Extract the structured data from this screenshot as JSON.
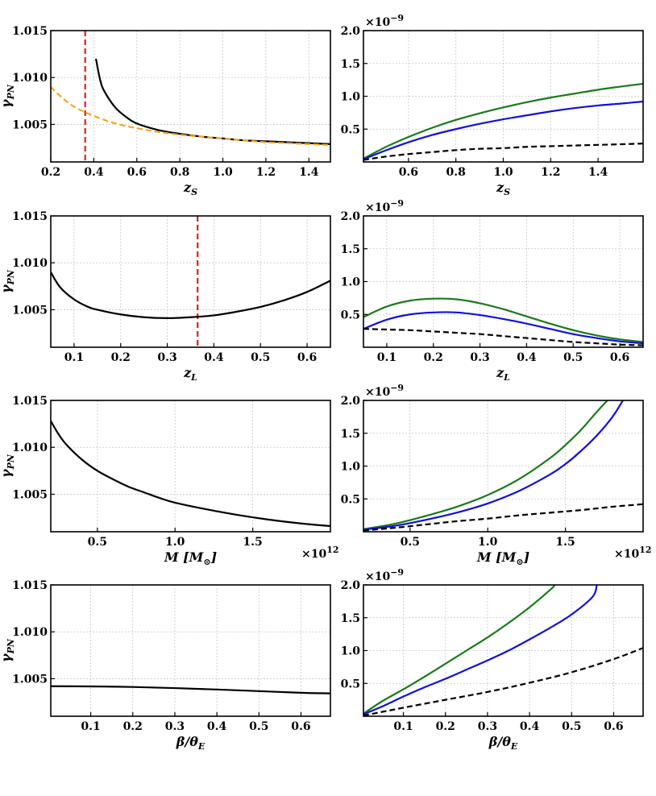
{
  "figure_title": "",
  "colors": {
    "black": "#000000",
    "green": "#1a7a1a",
    "blue": "#1010e0",
    "orange": "#f5a623",
    "red": "#e02020",
    "grid": "#c8c8c8"
  },
  "chart_data": [
    {
      "id": "zs-gamma",
      "type": "line",
      "title": "",
      "xlabel": "z",
      "xlabel_sub": "S",
      "ylabel": "γ",
      "ylabel_sub": "PN",
      "xlim": [
        0.2,
        1.5
      ],
      "ylim": [
        1.001,
        1.015
      ],
      "x_ticks": [
        0.2,
        0.4,
        0.6,
        0.8,
        1.0,
        1.2,
        1.4
      ],
      "x_tick_labels": [
        "0.2",
        "0.4",
        "0.6",
        "0.8",
        "1.0",
        "1.2",
        "1.4"
      ],
      "y_ticks": [
        1.005,
        1.01,
        1.015
      ],
      "y_tick_labels": [
        "1.005",
        "1.010",
        "1.015"
      ],
      "x_multiplier": "",
      "y_multiplier": "",
      "grid": true,
      "vlines": [
        {
          "x": 0.36,
          "color": "red",
          "style": "dashed"
        }
      ],
      "series": [
        {
          "name": "gamma_PN",
          "color": "black",
          "style": "solid",
          "x": [
            0.41,
            0.43,
            0.45,
            0.5,
            0.55,
            0.6,
            0.7,
            0.8,
            0.9,
            1.0,
            1.1,
            1.2,
            1.3,
            1.4,
            1.5
          ],
          "y": [
            1.012,
            1.0097,
            1.0085,
            1.0068,
            1.0058,
            1.0051,
            1.0044,
            1.004,
            1.0037,
            1.0035,
            1.0033,
            1.0032,
            1.0031,
            1.003,
            1.0029
          ]
        },
        {
          "name": "comparison",
          "color": "orange",
          "style": "dashed",
          "x": [
            0.2,
            0.25,
            0.3,
            0.35,
            0.4,
            0.5,
            0.6,
            0.7,
            0.8,
            0.9,
            1.0,
            1.1,
            1.2,
            1.3,
            1.4,
            1.5
          ],
          "y": [
            1.009,
            1.0079,
            1.007,
            1.0064,
            1.0059,
            1.0051,
            1.0046,
            1.0042,
            1.0039,
            1.0037,
            1.0035,
            1.0033,
            1.0031,
            1.003,
            1.0029,
            1.0028
          ]
        }
      ]
    },
    {
      "id": "zs-deviation",
      "type": "line",
      "title": "",
      "xlabel": "z",
      "xlabel_sub": "S",
      "ylabel": "",
      "ylabel_sub": "",
      "xlim": [
        0.41,
        1.59
      ],
      "ylim": [
        0.0,
        2.0
      ],
      "x_ticks": [
        0.6,
        0.8,
        1.0,
        1.2,
        1.4
      ],
      "x_tick_labels": [
        "0.6",
        "0.8",
        "1.0",
        "1.2",
        "1.4"
      ],
      "y_ticks": [
        0.5,
        1.0,
        1.5,
        2.0
      ],
      "y_tick_labels": [
        "0.5",
        "1.0",
        "1.5",
        "2.0"
      ],
      "x_multiplier": "",
      "y_multiplier": "×10",
      "y_multiplier_exp": "−9",
      "grid": true,
      "vlines": [],
      "series": [
        {
          "name": "green",
          "color": "green",
          "style": "solid",
          "x": [
            0.41,
            0.5,
            0.6,
            0.7,
            0.8,
            0.9,
            1.0,
            1.1,
            1.2,
            1.3,
            1.4,
            1.5,
            1.59
          ],
          "y": [
            0.05,
            0.22,
            0.38,
            0.52,
            0.64,
            0.74,
            0.83,
            0.91,
            0.98,
            1.04,
            1.1,
            1.15,
            1.19
          ]
        },
        {
          "name": "blue",
          "color": "blue",
          "style": "solid",
          "x": [
            0.41,
            0.5,
            0.6,
            0.7,
            0.8,
            0.9,
            1.0,
            1.1,
            1.2,
            1.3,
            1.4,
            1.5,
            1.59
          ],
          "y": [
            0.04,
            0.17,
            0.3,
            0.41,
            0.5,
            0.58,
            0.65,
            0.71,
            0.77,
            0.82,
            0.86,
            0.89,
            0.92
          ]
        },
        {
          "name": "black-dashed",
          "color": "black",
          "style": "dashed",
          "x": [
            0.41,
            0.5,
            0.6,
            0.7,
            0.8,
            0.9,
            1.0,
            1.1,
            1.2,
            1.3,
            1.4,
            1.5,
            1.59
          ],
          "y": [
            0.03,
            0.08,
            0.12,
            0.15,
            0.18,
            0.2,
            0.21,
            0.23,
            0.24,
            0.25,
            0.26,
            0.27,
            0.28
          ]
        }
      ]
    },
    {
      "id": "zl-gamma",
      "type": "line",
      "title": "",
      "xlabel": "z",
      "xlabel_sub": "L",
      "ylabel": "γ",
      "ylabel_sub": "PN",
      "xlim": [
        0.05,
        0.65
      ],
      "ylim": [
        1.001,
        1.015
      ],
      "x_ticks": [
        0.1,
        0.2,
        0.3,
        0.4,
        0.5,
        0.6
      ],
      "x_tick_labels": [
        "0.1",
        "0.2",
        "0.3",
        "0.4",
        "0.5",
        "0.6"
      ],
      "y_ticks": [
        1.005,
        1.01,
        1.015
      ],
      "y_tick_labels": [
        "1.005",
        "1.010",
        "1.015"
      ],
      "x_multiplier": "",
      "y_multiplier": "",
      "grid": true,
      "vlines": [
        {
          "x": 0.365,
          "color": "red",
          "style": "dashed"
        }
      ],
      "series": [
        {
          "name": "gamma_PN",
          "color": "black",
          "style": "solid",
          "x": [
            0.05,
            0.07,
            0.1,
            0.13,
            0.15,
            0.2,
            0.25,
            0.3,
            0.35,
            0.4,
            0.45,
            0.5,
            0.55,
            0.6,
            0.65
          ],
          "y": [
            1.009,
            1.0074,
            1.0061,
            1.0053,
            1.005,
            1.0045,
            1.0042,
            1.0041,
            1.0042,
            1.0044,
            1.0048,
            1.0053,
            1.006,
            1.0069,
            1.0081
          ]
        }
      ]
    },
    {
      "id": "zl-deviation",
      "type": "line",
      "title": "",
      "xlabel": "z",
      "xlabel_sub": "L",
      "ylabel": "",
      "ylabel_sub": "",
      "xlim": [
        0.05,
        0.65
      ],
      "ylim": [
        0.0,
        2.0
      ],
      "x_ticks": [
        0.1,
        0.2,
        0.3,
        0.4,
        0.5,
        0.6
      ],
      "x_tick_labels": [
        "0.1",
        "0.2",
        "0.3",
        "0.4",
        "0.5",
        "0.6"
      ],
      "y_ticks": [
        0.5,
        1.0,
        1.5,
        2.0
      ],
      "y_tick_labels": [
        "0.5",
        "1.0",
        "1.5",
        "2.0"
      ],
      "x_multiplier": "",
      "y_multiplier": "×10",
      "y_multiplier_exp": "−9",
      "grid": true,
      "vlines": [],
      "series": [
        {
          "name": "green",
          "color": "green",
          "style": "solid",
          "x": [
            0.05,
            0.1,
            0.15,
            0.2,
            0.25,
            0.3,
            0.35,
            0.4,
            0.45,
            0.5,
            0.55,
            0.6,
            0.65
          ],
          "y": [
            0.46,
            0.62,
            0.71,
            0.74,
            0.73,
            0.67,
            0.58,
            0.47,
            0.36,
            0.26,
            0.18,
            0.12,
            0.08
          ]
        },
        {
          "name": "blue",
          "color": "blue",
          "style": "solid",
          "x": [
            0.05,
            0.1,
            0.15,
            0.2,
            0.25,
            0.3,
            0.35,
            0.4,
            0.45,
            0.5,
            0.55,
            0.6,
            0.65
          ],
          "y": [
            0.28,
            0.42,
            0.5,
            0.53,
            0.53,
            0.49,
            0.43,
            0.36,
            0.28,
            0.2,
            0.14,
            0.09,
            0.06
          ]
        },
        {
          "name": "black-dashed",
          "color": "black",
          "style": "dashed",
          "x": [
            0.05,
            0.1,
            0.15,
            0.2,
            0.25,
            0.3,
            0.35,
            0.4,
            0.45,
            0.5,
            0.55,
            0.6,
            0.65
          ],
          "y": [
            0.28,
            0.27,
            0.26,
            0.24,
            0.22,
            0.2,
            0.17,
            0.14,
            0.11,
            0.08,
            0.06,
            0.04,
            0.03
          ]
        }
      ]
    },
    {
      "id": "mass-gamma",
      "type": "line",
      "title": "",
      "xlabel": "M  [M",
      "xlabel_sub": "⊙",
      "xlabel_close": "]",
      "ylabel": "γ",
      "ylabel_sub": "PN",
      "xlim": [
        0.2,
        2.0
      ],
      "ylim": [
        1.001,
        1.015
      ],
      "x_ticks": [
        0.5,
        1.0,
        1.5
      ],
      "x_tick_labels": [
        "0.5",
        "1.0",
        "1.5"
      ],
      "y_ticks": [
        1.005,
        1.01,
        1.015
      ],
      "y_tick_labels": [
        "1.005",
        "1.010",
        "1.015"
      ],
      "x_multiplier": "×10",
      "x_multiplier_exp": "12",
      "y_multiplier": "",
      "grid": true,
      "vlines": [],
      "series": [
        {
          "name": "gamma_PN",
          "color": "black",
          "style": "solid",
          "x": [
            0.2,
            0.25,
            0.3,
            0.4,
            0.5,
            0.6,
            0.7,
            0.8,
            0.9,
            1.0,
            1.2,
            1.4,
            1.6,
            1.8,
            2.0
          ],
          "y": [
            1.0128,
            1.0114,
            1.0103,
            1.0087,
            1.0075,
            1.0066,
            1.0058,
            1.0052,
            1.0046,
            1.0041,
            1.0034,
            1.0028,
            1.0023,
            1.0019,
            1.0016
          ]
        }
      ]
    },
    {
      "id": "mass-deviation",
      "type": "line",
      "title": "",
      "xlabel": "M  [M",
      "xlabel_sub": "⊙",
      "xlabel_close": "]",
      "ylabel": "",
      "ylabel_sub": "",
      "xlim": [
        0.2,
        2.0
      ],
      "ylim": [
        0.0,
        2.0
      ],
      "x_ticks": [
        0.5,
        1.0,
        1.5
      ],
      "x_tick_labels": [
        "0.5",
        "1.0",
        "1.5"
      ],
      "y_ticks": [
        0.5,
        1.0,
        1.5,
        2.0
      ],
      "y_tick_labels": [
        "0.5",
        "1.0",
        "1.5",
        "2.0"
      ],
      "x_multiplier": "×10",
      "x_multiplier_exp": "12",
      "y_multiplier": "×10",
      "y_multiplier_exp": "−9",
      "grid": true,
      "vlines": [],
      "series": [
        {
          "name": "green",
          "color": "green",
          "style": "solid",
          "x": [
            0.2,
            0.4,
            0.6,
            0.8,
            1.0,
            1.2,
            1.4,
            1.5,
            1.6,
            1.7,
            1.77
          ],
          "y": [
            0.04,
            0.12,
            0.24,
            0.38,
            0.56,
            0.8,
            1.12,
            1.32,
            1.55,
            1.82,
            2.0
          ]
        },
        {
          "name": "blue",
          "color": "blue",
          "style": "solid",
          "x": [
            0.2,
            0.4,
            0.6,
            0.8,
            1.0,
            1.2,
            1.4,
            1.5,
            1.6,
            1.7,
            1.8,
            1.87
          ],
          "y": [
            0.03,
            0.09,
            0.18,
            0.29,
            0.43,
            0.62,
            0.87,
            1.03,
            1.23,
            1.46,
            1.74,
            2.0
          ]
        },
        {
          "name": "black-dashed",
          "color": "black",
          "style": "dashed",
          "x": [
            0.2,
            0.4,
            0.6,
            0.8,
            1.0,
            1.2,
            1.4,
            1.6,
            1.8,
            2.0
          ],
          "y": [
            0.02,
            0.06,
            0.11,
            0.16,
            0.2,
            0.25,
            0.29,
            0.33,
            0.38,
            0.42
          ]
        }
      ]
    },
    {
      "id": "beta-gamma",
      "type": "line",
      "title": "",
      "xlabel": "β/θ",
      "xlabel_sub": "E",
      "ylabel": "γ",
      "ylabel_sub": "PN",
      "xlim": [
        0.005,
        0.67
      ],
      "ylim": [
        1.001,
        1.015
      ],
      "x_ticks": [
        0.1,
        0.2,
        0.3,
        0.4,
        0.5,
        0.6
      ],
      "x_tick_labels": [
        "0.1",
        "0.2",
        "0.3",
        "0.4",
        "0.5",
        "0.6"
      ],
      "y_ticks": [
        1.005,
        1.01,
        1.015
      ],
      "y_tick_labels": [
        "1.005",
        "1.010",
        "1.015"
      ],
      "x_multiplier": "",
      "y_multiplier": "",
      "grid": true,
      "vlines": [],
      "series": [
        {
          "name": "gamma_PN",
          "color": "black",
          "style": "solid",
          "x": [
            0.005,
            0.1,
            0.2,
            0.3,
            0.4,
            0.5,
            0.6,
            0.67
          ],
          "y": [
            1.0042,
            1.00418,
            1.00412,
            1.004,
            1.00385,
            1.00368,
            1.0035,
            1.00344
          ]
        }
      ]
    },
    {
      "id": "beta-deviation",
      "type": "line",
      "title": "",
      "xlabel": "β/θ",
      "xlabel_sub": "E",
      "ylabel": "",
      "ylabel_sub": "",
      "xlim": [
        0.005,
        0.67
      ],
      "ylim": [
        0.0,
        2.0
      ],
      "x_ticks": [
        0.1,
        0.2,
        0.3,
        0.4,
        0.5,
        0.6
      ],
      "x_tick_labels": [
        "0.1",
        "0.2",
        "0.3",
        "0.4",
        "0.5",
        "0.6"
      ],
      "y_ticks": [
        0.5,
        1.0,
        1.5,
        2.0
      ],
      "y_tick_labels": [
        "0.5",
        "1.0",
        "1.5",
        "2.0"
      ],
      "x_multiplier": "",
      "y_multiplier": "×10",
      "y_multiplier_exp": "−9",
      "grid": true,
      "vlines": [],
      "series": [
        {
          "name": "green",
          "color": "green",
          "style": "solid",
          "x": [
            0.005,
            0.05,
            0.1,
            0.15,
            0.2,
            0.25,
            0.3,
            0.35,
            0.4,
            0.45,
            0.46
          ],
          "y": [
            0.04,
            0.23,
            0.41,
            0.6,
            0.8,
            1.0,
            1.2,
            1.42,
            1.66,
            1.93,
            2.0
          ]
        },
        {
          "name": "blue",
          "color": "blue",
          "style": "solid",
          "x": [
            0.005,
            0.05,
            0.1,
            0.15,
            0.2,
            0.25,
            0.3,
            0.35,
            0.4,
            0.45,
            0.5,
            0.55,
            0.56
          ],
          "y": [
            0.03,
            0.15,
            0.3,
            0.44,
            0.57,
            0.71,
            0.85,
            1.0,
            1.17,
            1.35,
            1.55,
            1.82,
            2.0
          ]
        },
        {
          "name": "black-dashed",
          "color": "black",
          "style": "dashed",
          "x": [
            0.005,
            0.1,
            0.2,
            0.3,
            0.4,
            0.5,
            0.6,
            0.67
          ],
          "y": [
            0.01,
            0.13,
            0.25,
            0.37,
            0.51,
            0.67,
            0.87,
            1.04
          ]
        }
      ]
    }
  ]
}
